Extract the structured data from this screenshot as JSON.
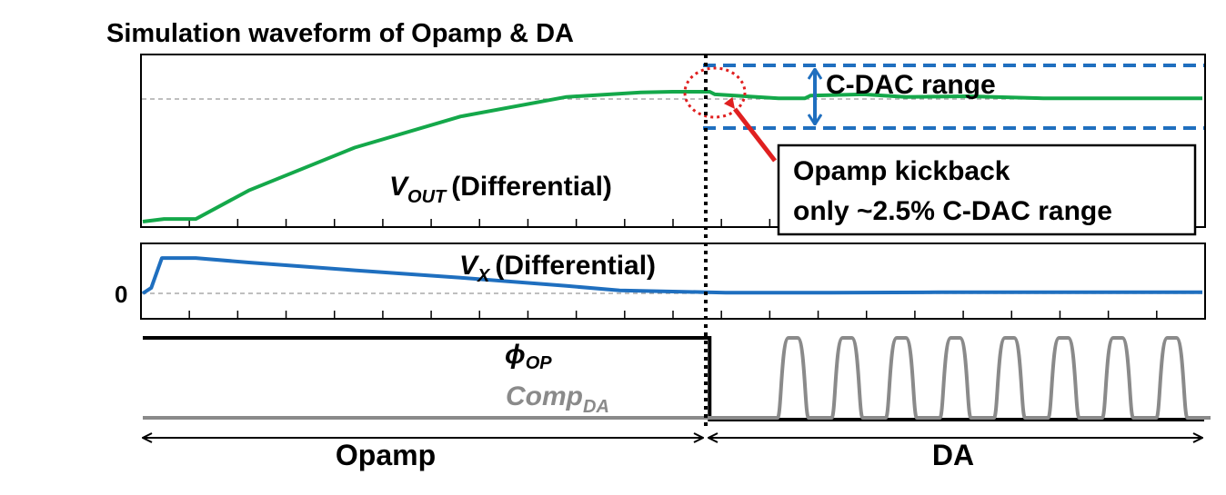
{
  "chart_data": {
    "type": "line",
    "title": "Simulation waveform of Opamp & DA",
    "colors": {
      "vout": "#14a84a",
      "vx": "#1f6fbf",
      "phi": "#000000",
      "comp": "#8a8a8a",
      "cdac": "#1f6fbf",
      "kick": "#e02020"
    },
    "panels": [
      {
        "name": "vout",
        "label_main": "V",
        "label_sub": "OUT",
        "label_rest": "(Differential)",
        "ylim": [
          0,
          1
        ],
        "series": [
          {
            "key": "vout",
            "x": [
              0,
              0.02,
              0.05,
              0.1,
              0.2,
              0.3,
              0.4,
              0.47,
              0.5,
              0.52,
              0.535,
              0.54,
              0.6,
              0.625,
              0.63,
              0.68,
              0.72,
              0.78,
              0.85,
              1.0
            ],
            "y": [
              0.0,
              0.02,
              0.02,
              0.24,
              0.57,
              0.81,
              0.96,
              0.995,
              1.0,
              1.0,
              1.0,
              0.98,
              0.95,
              0.95,
              0.97,
              0.98,
              0.96,
              0.965,
              0.95,
              0.95
            ]
          }
        ],
        "cdac_range": {
          "upper": 1.23,
          "lower": 0.72,
          "label": "C-DAC range"
        },
        "annotation": {
          "line1": "Opamp kickback",
          "line2": "only ~2.5% C-DAC range"
        }
      },
      {
        "name": "vx",
        "label_main": "V",
        "label_sub": "X",
        "label_rest": "(Differential)",
        "zero_label": "0",
        "ylim": [
          -0.1,
          1
        ],
        "series": [
          {
            "key": "vx",
            "x": [
              0,
              0.008,
              0.018,
              0.05,
              0.1,
              0.2,
              0.3,
              0.4,
              0.45,
              0.55,
              0.65,
              0.75,
              0.85,
              1.0
            ],
            "y": [
              0,
              0.15,
              0.95,
              0.95,
              0.83,
              0.62,
              0.42,
              0.2,
              0.08,
              0.02,
              0.02,
              0.03,
              0.03,
              0.03
            ]
          }
        ]
      },
      {
        "name": "clocks",
        "phi_label": "ϕ",
        "phi_sub": "OP",
        "comp_label": "Comp",
        "comp_sub": "DA",
        "comp_pulses": 8
      }
    ],
    "phases": [
      {
        "label": "Opamp",
        "from": 0,
        "to": 0.535
      },
      {
        "label": "DA",
        "from": 0.535,
        "to": 1
      }
    ]
  }
}
